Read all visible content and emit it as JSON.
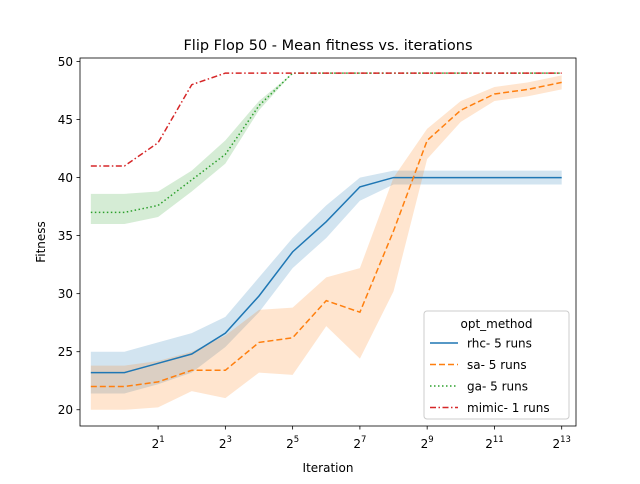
{
  "chart_data": {
    "type": "line",
    "title": "Flip Flop 50 - Mean fitness vs. iterations",
    "xlabel": "Iteration",
    "ylabel": "Fitness",
    "x_scale": "log2",
    "xlim": [
      0.4,
      11000
    ],
    "ylim": [
      18.6,
      50.3
    ],
    "xticks": [
      {
        "value": 2,
        "base": "2",
        "exp": "1"
      },
      {
        "value": 8,
        "base": "2",
        "exp": "3"
      },
      {
        "value": 32,
        "base": "2",
        "exp": "5"
      },
      {
        "value": 128,
        "base": "2",
        "exp": "7"
      },
      {
        "value": 512,
        "base": "2",
        "exp": "9"
      },
      {
        "value": 2048,
        "base": "2",
        "exp": "11"
      },
      {
        "value": 8192,
        "base": "2",
        "exp": "13"
      }
    ],
    "yticks": [
      20,
      25,
      30,
      35,
      40,
      45,
      50
    ],
    "grid": false,
    "legend": {
      "title": "opt_method",
      "placement": "lower-right"
    },
    "series": [
      {
        "name": "rhc- 5 runs",
        "color": "#1f77b4",
        "dash": "solid",
        "x": [
          0.5,
          1,
          2,
          4,
          8,
          16,
          32,
          64,
          128,
          256,
          512,
          1024,
          2048,
          4096,
          8192
        ],
        "y": [
          23.2,
          23.2,
          24.0,
          24.8,
          26.6,
          29.8,
          33.6,
          36.2,
          39.2,
          40.0,
          40.0,
          40.0,
          40.0,
          40.0,
          40.0
        ],
        "lower": [
          21.4,
          21.4,
          22.2,
          23.2,
          25.4,
          28.4,
          32.2,
          34.8,
          38.0,
          39.4,
          39.4,
          39.4,
          39.4,
          39.4,
          39.4
        ],
        "upper": [
          25.0,
          25.0,
          25.8,
          26.6,
          28.0,
          31.4,
          34.8,
          37.6,
          40.0,
          40.6,
          40.6,
          40.6,
          40.6,
          40.6,
          40.6
        ]
      },
      {
        "name": "sa- 5 runs",
        "color": "#ff7f0e",
        "dash": "dashed",
        "x": [
          0.5,
          1,
          2,
          4,
          8,
          16,
          32,
          64,
          128,
          256,
          512,
          1024,
          2048,
          4096,
          8192
        ],
        "y": [
          22.0,
          22.0,
          22.4,
          23.4,
          23.4,
          25.8,
          26.2,
          29.4,
          28.4,
          35.4,
          43.2,
          45.8,
          47.2,
          47.6,
          48.2
        ],
        "lower": [
          20.0,
          20.0,
          20.2,
          21.6,
          21.0,
          23.2,
          23.0,
          27.2,
          24.4,
          30.2,
          41.6,
          44.8,
          46.6,
          47.0,
          47.6
        ],
        "upper": [
          23.8,
          23.8,
          24.2,
          25.0,
          26.4,
          28.6,
          28.8,
          31.4,
          32.2,
          40.0,
          44.2,
          46.6,
          47.8,
          48.2,
          48.8
        ]
      },
      {
        "name": "ga- 5 runs",
        "color": "#2ca02c",
        "dash": "dotted",
        "x": [
          0.5,
          1,
          2,
          4,
          8,
          16,
          32,
          64,
          128,
          256,
          512,
          1024,
          2048,
          4096,
          8192
        ],
        "y": [
          37.0,
          37.0,
          37.6,
          39.8,
          42.0,
          46.2,
          49.0,
          49.0,
          49.0,
          49.0,
          49.0,
          49.0,
          49.0,
          49.0,
          49.0
        ],
        "lower": [
          36.0,
          36.0,
          36.6,
          38.8,
          41.2,
          45.8,
          49.0,
          49.0,
          49.0,
          49.0,
          49.0,
          49.0,
          49.0,
          49.0,
          49.0
        ],
        "upper": [
          38.6,
          38.6,
          38.8,
          40.6,
          43.2,
          46.6,
          49.0,
          49.0,
          49.0,
          49.0,
          49.0,
          49.0,
          49.0,
          49.0,
          49.0
        ]
      },
      {
        "name": "mimic- 1 runs",
        "color": "#d62728",
        "dash": "dashdot",
        "x": [
          0.5,
          1,
          2,
          4,
          8,
          16,
          32,
          64,
          128,
          256,
          512,
          1024,
          2048,
          4096,
          8192
        ],
        "y": [
          41.0,
          41.0,
          43.0,
          48.0,
          49.0,
          49.0,
          49.0,
          49.0,
          49.0,
          49.0,
          49.0,
          49.0,
          49.0,
          49.0,
          49.0
        ]
      }
    ]
  }
}
